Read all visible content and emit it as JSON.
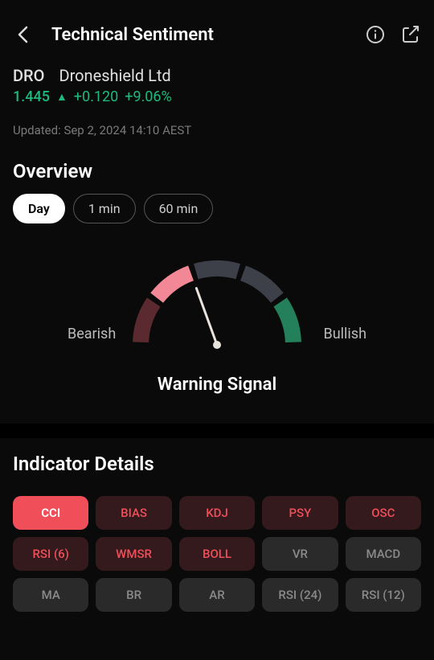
{
  "header": {
    "title": "Technical Sentiment"
  },
  "stock": {
    "ticker": "DRO",
    "company": "Droneshield Ltd",
    "price": "1.445",
    "change": "+0.120",
    "percent": "+9.06%",
    "price_color": "#1fb87f"
  },
  "updated": "Updated: Sep 2, 2024 14:10 AEST",
  "overview": {
    "title": "Overview",
    "tabs": [
      {
        "label": "Day",
        "active": true
      },
      {
        "label": "1 min",
        "active": false
      },
      {
        "label": "60 min",
        "active": false
      }
    ],
    "gauge": {
      "left_label": "Bearish",
      "right_label": "Bullish",
      "needle_angle": -20,
      "segments": [
        {
          "color": "#5a2a30",
          "start": 180,
          "end": 216
        },
        {
          "color": "#f28896",
          "start": 216,
          "end": 252
        },
        {
          "color": "#3d4048",
          "start": 252,
          "end": 288
        },
        {
          "color": "#3d4048",
          "start": 288,
          "end": 324
        },
        {
          "color": "#23805a",
          "start": 324,
          "end": 360
        }
      ]
    },
    "signal": "Warning Signal"
  },
  "details": {
    "title": "Indicator Details",
    "indicators": [
      {
        "label": "CCI",
        "state": "selected"
      },
      {
        "label": "BIAS",
        "state": "red"
      },
      {
        "label": "KDJ",
        "state": "red"
      },
      {
        "label": "PSY",
        "state": "red"
      },
      {
        "label": "OSC",
        "state": "red"
      },
      {
        "label": "RSI (6)",
        "state": "red"
      },
      {
        "label": "WMSR",
        "state": "red"
      },
      {
        "label": "BOLL",
        "state": "red"
      },
      {
        "label": "VR",
        "state": "gray"
      },
      {
        "label": "MACD",
        "state": "gray"
      },
      {
        "label": "MA",
        "state": "gray"
      },
      {
        "label": "BR",
        "state": "gray"
      },
      {
        "label": "AR",
        "state": "gray"
      },
      {
        "label": "RSI (24)",
        "state": "gray"
      },
      {
        "label": "RSI (12)",
        "state": "gray"
      }
    ]
  }
}
